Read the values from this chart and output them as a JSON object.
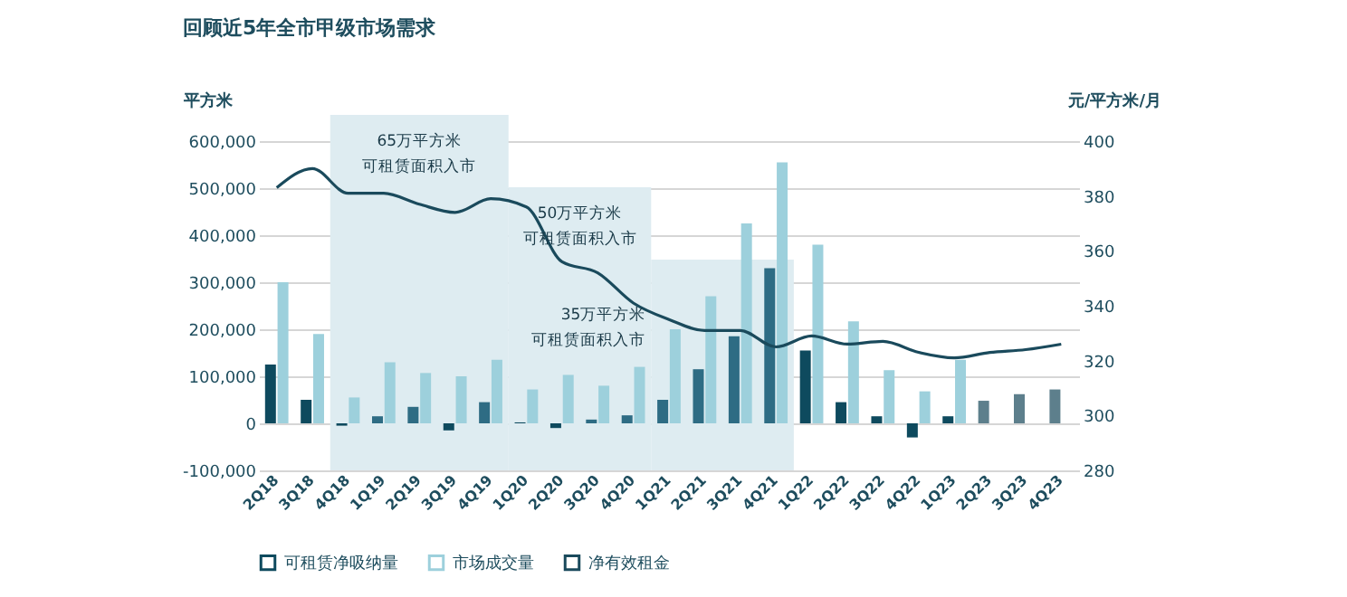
{
  "chart_data": {
    "type": "bar",
    "title": "回顾近5年全市甲级市场需求",
    "ylabel": "平方米",
    "y2label": "元/平方米/月",
    "categories": [
      "2Q18",
      "3Q18",
      "4Q18",
      "1Q19",
      "2Q19",
      "3Q19",
      "4Q19",
      "1Q20",
      "2Q20",
      "3Q20",
      "4Q20",
      "1Q21",
      "2Q21",
      "3Q21",
      "4Q21",
      "1Q22",
      "2Q22",
      "3Q22",
      "4Q22",
      "1Q23",
      "2Q23",
      "3Q23",
      "4Q23"
    ],
    "series": [
      {
        "name": "可租赁净吸纳量",
        "color": "#0e4a5e",
        "colors": [
          "#0e4a5e",
          "#0e4a5e",
          "#0e4a5e",
          "#2e6c84",
          "#2e6c84",
          "#0e4a5e",
          "#2e6c84",
          "#0e4a5e",
          "#0e4a5e",
          "#2e6c84",
          "#2e6c84",
          "#2e6c84",
          "#2e6c84",
          "#2e6c84",
          "#2e6c84",
          "#0e4a5e",
          "#0e4a5e",
          "#0e4a5e",
          "#0e4a5e",
          "#0e4a5e",
          "#5d7f8c",
          "#5d7f8c",
          "#5d7f8c"
        ],
        "values": [
          125000,
          50000,
          -5000,
          15000,
          35000,
          -15000,
          45000,
          2000,
          -10000,
          8000,
          17000,
          50000,
          115000,
          185000,
          330000,
          155000,
          45000,
          15000,
          -30000,
          15000,
          48000,
          62000,
          72000
        ]
      },
      {
        "name": "市场成交量",
        "color": "#9dd0dc",
        "values": [
          300000,
          190000,
          55000,
          130000,
          107000,
          100000,
          135000,
          72000,
          103000,
          80000,
          120000,
          200000,
          270000,
          425000,
          555000,
          380000,
          217000,
          113000,
          68000,
          135000,
          null,
          null,
          null
        ]
      },
      {
        "name": "净有效租金",
        "type": "line",
        "axis": "y2",
        "color": "#1a4a5c",
        "values": [
          383,
          390,
          381,
          381,
          377,
          374,
          379,
          376,
          356,
          352,
          341,
          335,
          331,
          331,
          325,
          329,
          326,
          327,
          323,
          321,
          323,
          324,
          326
        ]
      }
    ],
    "ylim": [
      -100000,
      600000
    ],
    "yticks": [
      {
        "value": -100000,
        "label": "-100,000"
      },
      0,
      {
        "value": 100000,
        "label": "100,000"
      },
      {
        "value": 200000,
        "label": "200,000"
      },
      {
        "value": 300000,
        "label": "300,000"
      },
      {
        "value": 400000,
        "label": "400,000"
      },
      {
        "value": 500000,
        "label": "500,000"
      },
      {
        "value": 600000,
        "label": "600,000"
      }
    ],
    "y2lim": [
      280,
      400
    ],
    "y2ticks": [
      280,
      300,
      320,
      340,
      360,
      380,
      400
    ],
    "bands": [
      {
        "axis": "x",
        "from": "4Q18",
        "to": "4Q19",
        "label": "65万平方米可租赁面积入市",
        "color": "#deecf1"
      },
      {
        "axis": "x",
        "from": "1Q20",
        "to": "4Q20",
        "label": "50万平方米可租赁面积入市",
        "color": "#deecf1"
      },
      {
        "axis": "x",
        "from": "1Q21",
        "to": "4Q21",
        "label": "35万平方米可租赁面积入市",
        "color": "#deecf1"
      }
    ],
    "grid": "y",
    "legend": "bottom"
  }
}
